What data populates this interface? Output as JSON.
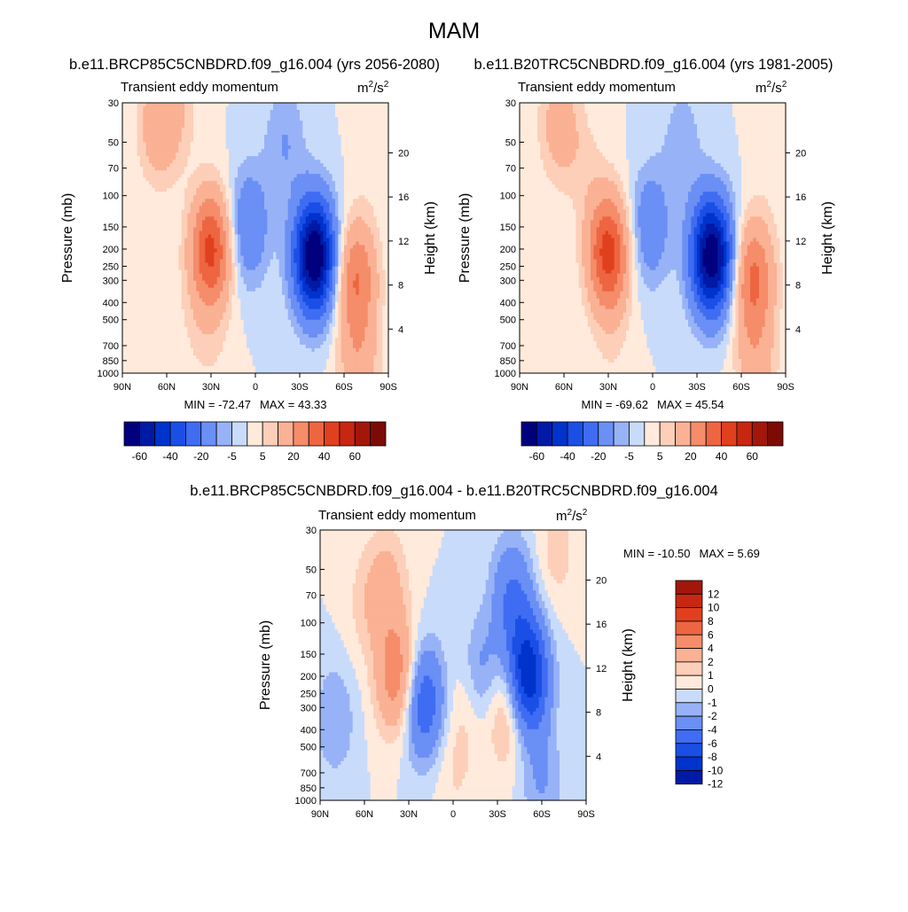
{
  "page": {
    "title": "MAM"
  },
  "chart_data": [
    {
      "type": "heatmap",
      "title": "b.e11.BRCP85C5CNBDRD.f09_g16.004 (yrs 2056-2080)",
      "left_string": "Transient eddy momentum",
      "units": "m2/s2",
      "stats": {
        "min_label": "MIN = -72.47",
        "max_label": "MAX = 43.33",
        "min": -72.47,
        "max": 43.33
      },
      "xlabel": "",
      "ylabel": "Pressure (mb)",
      "y2label": "Height (km)",
      "xticks": [
        "90N",
        "60N",
        "30N",
        "0",
        "30S",
        "60S",
        "90S"
      ],
      "yticks": [
        30,
        50,
        70,
        100,
        150,
        200,
        250,
        300,
        400,
        500,
        700,
        850,
        1000
      ],
      "y2ticks": [
        4,
        8,
        12,
        16,
        20
      ],
      "ylim": [
        1000,
        30
      ],
      "yscale": "log",
      "colorbar": {
        "orientation": "horizontal",
        "levels": [
          -70,
          -60,
          -50,
          -40,
          -30,
          -20,
          -10,
          -5,
          0,
          5,
          10,
          20,
          30,
          40,
          50,
          60,
          70
        ],
        "labels": [
          "-60",
          "-40",
          "-20",
          "-5",
          "5",
          "20",
          "40",
          "60"
        ],
        "colors": [
          "#00007f",
          "#001aa6",
          "#0033cc",
          "#1a4fe6",
          "#3f6cf2",
          "#6a8ff5",
          "#98b2f7",
          "#c9dbfb",
          "#ffeadc",
          "#fdcfb8",
          "#fab194",
          "#f58c6a",
          "#ee6541",
          "#e1401e",
          "#c72711",
          "#a3170b",
          "#7d0b05"
        ]
      },
      "features": [
        {
          "lat": 65,
          "p": 40,
          "value": 18
        },
        {
          "lat": 50,
          "p": 30,
          "value": 6
        },
        {
          "lat": 30,
          "p": 200,
          "value": 43
        },
        {
          "lat": 30,
          "p": 700,
          "value": 4
        },
        {
          "lat": 42,
          "p": 500,
          "value": 3
        },
        {
          "lat": 5,
          "p": 150,
          "value": -20
        },
        {
          "lat": -40,
          "p": 220,
          "value": -72
        },
        {
          "lat": -20,
          "p": 50,
          "value": -10
        },
        {
          "lat": -68,
          "p": 290,
          "value": 30
        },
        {
          "lat": -70,
          "p": 900,
          "value": 15
        },
        {
          "lat": -80,
          "p": 60,
          "value": 3
        }
      ]
    },
    {
      "type": "heatmap",
      "title": "b.e11.B20TRC5CNBDRD.f09_g16.004 (yrs 1981-2005)",
      "left_string": "Transient eddy momentum",
      "units": "m2/s2",
      "stats": {
        "min_label": "MIN = -69.62",
        "max_label": "MAX = 45.54",
        "min": -69.62,
        "max": 45.54
      },
      "xlabel": "",
      "ylabel": "Pressure (mb)",
      "y2label": "Height (km)",
      "xticks": [
        "90N",
        "60N",
        "30N",
        "0",
        "30S",
        "60S",
        "90S"
      ],
      "yticks": [
        30,
        50,
        70,
        100,
        150,
        200,
        250,
        300,
        400,
        500,
        700,
        850,
        1000
      ],
      "y2ticks": [
        4,
        8,
        12,
        16,
        20
      ],
      "ylim": [
        1000,
        30
      ],
      "yscale": "log",
      "colorbar": {
        "orientation": "horizontal",
        "levels": [
          -70,
          -60,
          -50,
          -40,
          -30,
          -20,
          -10,
          -5,
          0,
          5,
          10,
          20,
          30,
          40,
          50,
          60,
          70
        ],
        "labels": [
          "-60",
          "-40",
          "-20",
          "-5",
          "5",
          "20",
          "40",
          "60"
        ],
        "colors": [
          "#00007f",
          "#001aa6",
          "#0033cc",
          "#1a4fe6",
          "#3f6cf2",
          "#6a8ff5",
          "#98b2f7",
          "#c9dbfb",
          "#ffeadc",
          "#fdcfb8",
          "#fab194",
          "#f58c6a",
          "#ee6541",
          "#e1401e",
          "#c72711",
          "#a3170b",
          "#7d0b05"
        ]
      },
      "features": [
        {
          "lat": 63,
          "p": 40,
          "value": 15
        },
        {
          "lat": 30,
          "p": 210,
          "value": 45
        },
        {
          "lat": 45,
          "p": 70,
          "value": 5
        },
        {
          "lat": 28,
          "p": 700,
          "value": 4
        },
        {
          "lat": 2,
          "p": 150,
          "value": -18
        },
        {
          "lat": -40,
          "p": 220,
          "value": -70
        },
        {
          "lat": -20,
          "p": 50,
          "value": -8
        },
        {
          "lat": -68,
          "p": 290,
          "value": 32
        },
        {
          "lat": -70,
          "p": 900,
          "value": 14
        },
        {
          "lat": -80,
          "p": 60,
          "value": 3
        }
      ]
    },
    {
      "type": "heatmap",
      "title": "b.e11.BRCP85C5CNBDRD.f09_g16.004 - b.e11.B20TRC5CNBDRD.f09_g16.004",
      "left_string": "Transient eddy momentum",
      "units": "m2/s2",
      "stats": {
        "min_label": "MIN = -10.50",
        "max_label": "MAX =   5.69",
        "min": -10.5,
        "max": 5.69
      },
      "xlabel": "",
      "ylabel": "Pressure (mb)",
      "y2label": "Height (km)",
      "xticks": [
        "90N",
        "60N",
        "30N",
        "0",
        "30S",
        "60S",
        "90S"
      ],
      "yticks": [
        30,
        50,
        70,
        100,
        150,
        200,
        250,
        300,
        400,
        500,
        700,
        850,
        1000
      ],
      "y2ticks": [
        4,
        8,
        12,
        16,
        20
      ],
      "ylim": [
        1000,
        30
      ],
      "yscale": "log",
      "colorbar": {
        "orientation": "vertical",
        "levels": [
          -14,
          -12,
          -10,
          -8,
          -6,
          -4,
          -2,
          -1,
          0,
          1,
          2,
          4,
          6,
          8,
          10,
          12,
          14
        ],
        "labels": [
          "12",
          "10",
          "8",
          "6",
          "4",
          "2",
          "1",
          "0",
          "-1",
          "-2",
          "-4",
          "-6",
          "-8",
          "-10",
          "-12"
        ],
        "colors": [
          "#00007f",
          "#001aa6",
          "#0033cc",
          "#1a4fe6",
          "#3f6cf2",
          "#6a8ff5",
          "#98b2f7",
          "#c9dbfb",
          "#ffeadc",
          "#fdcfb8",
          "#fab194",
          "#f58c6a",
          "#ee6541",
          "#e1401e",
          "#c72711",
          "#a3170b",
          "#7d0b05"
        ]
      },
      "features": [
        {
          "lat": 38,
          "p": 200,
          "value": 5.6
        },
        {
          "lat": 45,
          "p": 60,
          "value": 2.5
        },
        {
          "lat": 60,
          "p": 80,
          "value": 1.2
        },
        {
          "lat": -37,
          "p": 290,
          "value": 4
        },
        {
          "lat": -10,
          "p": 300,
          "value": 1.5
        },
        {
          "lat": 20,
          "p": 280,
          "value": -6
        },
        {
          "lat": -50,
          "p": 200,
          "value": -10.5
        },
        {
          "lat": -40,
          "p": 70,
          "value": -4
        },
        {
          "lat": -20,
          "p": 200,
          "value": -3
        },
        {
          "lat": 80,
          "p": 350,
          "value": -2
        },
        {
          "lat": -70,
          "p": 40,
          "value": 1.5
        },
        {
          "lat": 0,
          "p": 700,
          "value": 1
        },
        {
          "lat": -60,
          "p": 800,
          "value": -2
        }
      ]
    }
  ]
}
